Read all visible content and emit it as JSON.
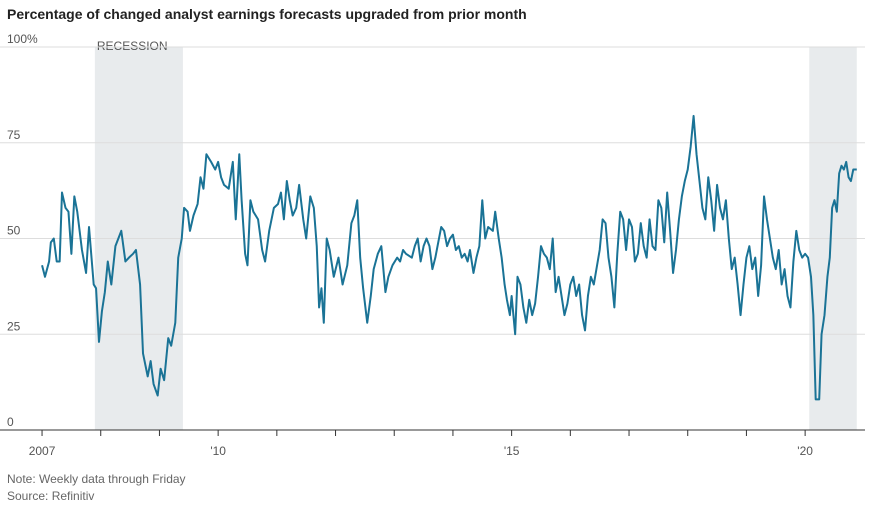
{
  "chart_data": {
    "type": "line",
    "title": "Percentage of changed analyst earnings forecasts upgraded from prior month",
    "note": "Note: Weekly data through Friday",
    "source": "Source: Refinitiv",
    "color": "#1a7396",
    "grid": true,
    "shaded_regions": [
      {
        "start": 2007.9,
        "end": 2009.4,
        "label": "RECESSION"
      },
      {
        "start": 2020.07,
        "end": 2020.88
      }
    ],
    "xlim": [
      2006.88,
      2021.02
    ],
    "ylim": [
      0,
      100
    ],
    "yticks": [
      0,
      25,
      50,
      75,
      {
        "value": 100,
        "label": "100%"
      }
    ],
    "xticks": [
      2007,
      {
        "value": 2010,
        "label": "'10"
      },
      {
        "value": 2015,
        "label": "'15"
      },
      {
        "value": 2020,
        "label": "'20"
      }
    ],
    "xminorticks": [
      2008,
      2009,
      2011,
      2012,
      2013,
      2014,
      2016,
      2017,
      2018,
      2019
    ],
    "x": [
      2007.0,
      2007.05,
      2007.12,
      2007.15,
      2007.2,
      2007.25,
      2007.3,
      2007.34,
      2007.4,
      2007.45,
      2007.5,
      2007.55,
      2007.6,
      2007.68,
      2007.75,
      2007.8,
      2007.88,
      2007.92,
      2007.97,
      2008.02,
      2008.07,
      2008.12,
      2008.18,
      2008.25,
      2008.35,
      2008.42,
      2008.48,
      2008.55,
      2008.6,
      2008.67,
      2008.72,
      2008.8,
      2008.85,
      2008.9,
      2008.97,
      2009.02,
      2009.08,
      2009.15,
      2009.2,
      2009.27,
      2009.32,
      2009.38,
      2009.42,
      2009.48,
      2009.52,
      2009.58,
      2009.65,
      2009.7,
      2009.75,
      2009.8,
      2009.88,
      2009.95,
      2010.0,
      2010.05,
      2010.1,
      2010.18,
      2010.25,
      2010.3,
      2010.36,
      2010.4,
      2010.46,
      2010.5,
      2010.55,
      2010.6,
      2010.68,
      2010.75,
      2010.8,
      2010.87,
      2010.95,
      2011.02,
      2011.07,
      2011.12,
      2011.17,
      2011.22,
      2011.27,
      2011.33,
      2011.38,
      2011.45,
      2011.5,
      2011.57,
      2011.63,
      2011.68,
      2011.72,
      2011.76,
      2011.8,
      2011.85,
      2011.9,
      2011.97,
      2012.05,
      2012.12,
      2012.2,
      2012.27,
      2012.32,
      2012.37,
      2012.42,
      2012.47,
      2012.54,
      2012.6,
      2012.65,
      2012.72,
      2012.78,
      2012.85,
      2012.9,
      2012.97,
      2013.05,
      2013.1,
      2013.15,
      2013.2,
      2013.3,
      2013.35,
      2013.4,
      2013.45,
      2013.5,
      2013.55,
      2013.6,
      2013.65,
      2013.7,
      2013.75,
      2013.8,
      2013.85,
      2013.9,
      2013.95,
      2014.0,
      2014.05,
      2014.1,
      2014.15,
      2014.2,
      2014.25,
      2014.29,
      2014.35,
      2014.4,
      2014.45,
      2014.5,
      2014.55,
      2014.6,
      2014.68,
      2014.72,
      2014.78,
      2014.83,
      2014.88,
      2014.92,
      2014.97,
      2015.0,
      2015.06,
      2015.1,
      2015.15,
      2015.2,
      2015.25,
      2015.3,
      2015.35,
      2015.4,
      2015.45,
      2015.5,
      2015.55,
      2015.6,
      2015.65,
      2015.7,
      2015.75,
      2015.8,
      2015.85,
      2015.9,
      2015.95,
      2016.0,
      2016.05,
      2016.1,
      2016.15,
      2016.2,
      2016.25,
      2016.3,
      2016.35,
      2016.4,
      2016.5,
      2016.55,
      2016.6,
      2016.65,
      2016.7,
      2016.75,
      2016.8,
      2016.85,
      2016.9,
      2016.95,
      2017.0,
      2017.05,
      2017.1,
      2017.15,
      2017.2,
      2017.25,
      2017.3,
      2017.35,
      2017.4,
      2017.45,
      2017.5,
      2017.55,
      2017.6,
      2017.65,
      2017.7,
      2017.75,
      2017.8,
      2017.85,
      2017.9,
      2017.95,
      2018.0,
      2018.05,
      2018.1,
      2018.15,
      2018.2,
      2018.25,
      2018.3,
      2018.35,
      2018.4,
      2018.45,
      2018.5,
      2018.55,
      2018.6,
      2018.65,
      2018.7,
      2018.75,
      2018.8,
      2018.85,
      2018.9,
      2018.95,
      2019.0,
      2019.05,
      2019.1,
      2019.15,
      2019.2,
      2019.25,
      2019.3,
      2019.35,
      2019.4,
      2019.45,
      2019.5,
      2019.55,
      2019.6,
      2019.65,
      2019.7,
      2019.75,
      2019.8,
      2019.85,
      2019.9,
      2019.95,
      2020.0,
      2020.05,
      2020.1,
      2020.14,
      2020.18,
      2020.24,
      2020.28,
      2020.33,
      2020.38,
      2020.42,
      2020.46,
      2020.5,
      2020.54,
      2020.58,
      2020.62,
      2020.66,
      2020.7,
      2020.74,
      2020.78,
      2020.82,
      2020.88
    ],
    "values": [
      43,
      40,
      44,
      49,
      50,
      44,
      44,
      62,
      58,
      57,
      46,
      61,
      57,
      47,
      41,
      53,
      38,
      37,
      23,
      31,
      36,
      44,
      38,
      48,
      52,
      44,
      45,
      46,
      47,
      38,
      20,
      14,
      18,
      12,
      9,
      16,
      13,
      24,
      22,
      28,
      45,
      50,
      58,
      57,
      52,
      56,
      59,
      66,
      63,
      72,
      70,
      68,
      70,
      66,
      64,
      63,
      70,
      55,
      72,
      60,
      46,
      43,
      60,
      57,
      55,
      47,
      44,
      52,
      58,
      59,
      62,
      55,
      65,
      60,
      56,
      58,
      64,
      55,
      50,
      61,
      58,
      48,
      32,
      37,
      28,
      50,
      47,
      40,
      45,
      38,
      43,
      54,
      56,
      60,
      45,
      37,
      28,
      35,
      42,
      46,
      48,
      36,
      40,
      43,
      45,
      44,
      47,
      46,
      45,
      48,
      50,
      44,
      48,
      50,
      48,
      42,
      45,
      49,
      53,
      52,
      48,
      50,
      51,
      47,
      48,
      45,
      46,
      44,
      47,
      41,
      45,
      48,
      60,
      50,
      53,
      52,
      57,
      50,
      45,
      38,
      34,
      30,
      35,
      25,
      40,
      38,
      32,
      28,
      34,
      30,
      33,
      40,
      48,
      46,
      45,
      42,
      50,
      36,
      40,
      35,
      30,
      33,
      38,
      40,
      35,
      38,
      30,
      26,
      35,
      40,
      38,
      47,
      55,
      54,
      45,
      40,
      32,
      46,
      57,
      55,
      47,
      55,
      53,
      44,
      46,
      54,
      48,
      45,
      55,
      48,
      47,
      60,
      58,
      49,
      62,
      52,
      41,
      47,
      55,
      61,
      65,
      68,
      74,
      82,
      72,
      65,
      58,
      55,
      66,
      60,
      52,
      64,
      58,
      55,
      60,
      50,
      42,
      45,
      38,
      30,
      38,
      45,
      48,
      42,
      45,
      35,
      43,
      61,
      55,
      50,
      45,
      42,
      47,
      38,
      42,
      35,
      32,
      44,
      52,
      47,
      45,
      46,
      45,
      40,
      30,
      8,
      8,
      25,
      30,
      40,
      45,
      58,
      60,
      57,
      67,
      69,
      68,
      70,
      66,
      65,
      68,
      68
    ]
  }
}
